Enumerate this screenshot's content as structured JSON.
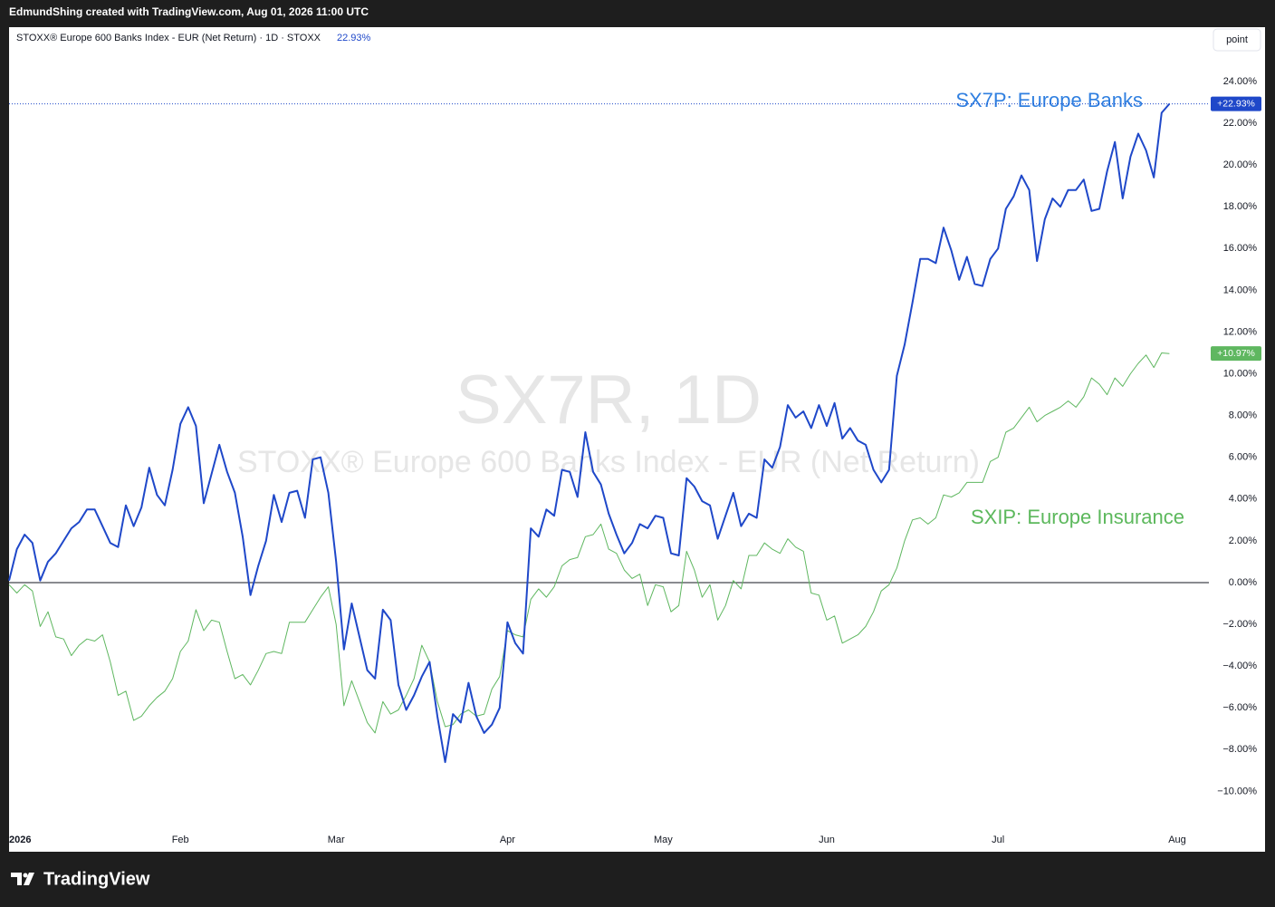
{
  "header": "EdmundShing created with TradingView.com, Aug 01, 2026 11:00 UTC",
  "brand": "TradingView",
  "button": "point",
  "chart_data": {
    "type": "line",
    "symbol_line": "STOXX® Europe 600 Banks Index - EUR (Net Return) · 1D · STOXX",
    "symbol_value": "22.93%",
    "watermark": "SX7R, 1D",
    "watermark_subtitle": "STOXX® Europe 600 Banks Index - EUR (Net Return)",
    "annotations": [
      "SX7P: Europe Banks",
      "SXIP: Europe Insurance"
    ],
    "categories": [
      "2026",
      null,
      null,
      null,
      null,
      null,
      null,
      null,
      null,
      null,
      null,
      null,
      null,
      null,
      null,
      null,
      null,
      null,
      null,
      null,
      null,
      null,
      "Feb",
      null,
      null,
      null,
      null,
      null,
      null,
      null,
      null,
      null,
      null,
      null,
      null,
      null,
      null,
      null,
      null,
      null,
      null,
      null,
      "Mar",
      null,
      null,
      null,
      null,
      null,
      null,
      null,
      null,
      null,
      null,
      null,
      null,
      null,
      null,
      null,
      null,
      null,
      null,
      null,
      null,
      null,
      "Apr",
      null,
      null,
      null,
      null,
      null,
      null,
      null,
      null,
      null,
      null,
      null,
      null,
      null,
      null,
      null,
      null,
      null,
      null,
      null,
      "May",
      null,
      null,
      null,
      null,
      null,
      null,
      null,
      null,
      null,
      null,
      null,
      null,
      null,
      null,
      null,
      null,
      null,
      null,
      null,
      null,
      "Jun",
      null,
      null,
      null,
      null,
      null,
      null,
      null,
      null,
      null,
      null,
      null,
      null,
      null,
      null,
      null,
      null,
      null,
      null,
      null,
      null,
      null,
      "Jul",
      null,
      null,
      null,
      null,
      null,
      null,
      null,
      null,
      null,
      null,
      null,
      null,
      null,
      null,
      null,
      null,
      null,
      null,
      null,
      null,
      null,
      null,
      "Aug"
    ],
    "series": [
      {
        "name": "SX7P",
        "color": "#1f48c9",
        "last_label": "+22.93%",
        "values": [
          0.1,
          1.6,
          2.3,
          1.9,
          0.1,
          1.0,
          1.4,
          2.0,
          2.6,
          2.9,
          3.5,
          3.5,
          2.7,
          1.9,
          1.7,
          3.7,
          2.7,
          3.6,
          5.5,
          4.2,
          3.7,
          5.4,
          7.6,
          8.4,
          7.5,
          3.8,
          5.2,
          6.6,
          5.3,
          4.3,
          2.2,
          -0.6,
          0.8,
          2.0,
          4.2,
          2.9,
          4.3,
          4.4,
          3.1,
          5.9,
          6.0,
          4.3,
          1.0,
          -3.2,
          -1.0,
          -2.6,
          -4.2,
          -4.6,
          -1.3,
          -1.8,
          -4.9,
          -6.1,
          -5.4,
          -4.5,
          -3.8,
          -6.4,
          -8.6,
          -6.3,
          -6.7,
          -4.8,
          -6.4,
          -7.2,
          -6.8,
          -6.0,
          -1.9,
          -2.9,
          -3.4,
          2.6,
          2.2,
          3.5,
          3.2,
          5.4,
          5.3,
          4.1,
          7.2,
          5.3,
          4.7,
          3.3,
          2.3,
          1.4,
          1.9,
          2.8,
          2.6,
          3.2,
          3.1,
          1.4,
          1.3,
          5.0,
          4.6,
          3.9,
          3.7,
          2.1,
          3.2,
          4.3,
          2.7,
          3.3,
          3.1,
          5.9,
          5.5,
          6.5,
          8.5,
          7.9,
          8.2,
          7.4,
          8.5,
          7.5,
          8.6,
          6.9,
          7.4,
          6.8,
          6.6,
          5.4,
          4.8,
          5.4,
          9.9,
          11.4,
          13.4,
          15.5,
          15.5,
          15.3,
          17.0,
          15.9,
          14.5,
          15.6,
          14.3,
          14.2,
          15.5,
          16.0,
          17.9,
          18.5,
          19.5,
          18.8,
          15.4,
          17.4,
          18.4,
          18.0,
          18.8,
          18.8,
          19.3,
          17.8,
          17.9,
          19.7,
          21.1,
          18.4,
          20.4,
          21.5,
          20.7,
          19.4,
          22.5,
          22.93,
          null
        ]
      },
      {
        "name": "SXIP",
        "color": "#5fb760",
        "last_label": "+10.97%",
        "values": [
          -0.1,
          -0.5,
          -0.1,
          -0.4,
          -2.1,
          -1.4,
          -2.6,
          -2.7,
          -3.5,
          -3.0,
          -2.7,
          -2.8,
          -2.5,
          -3.8,
          -5.4,
          -5.2,
          -6.6,
          -6.4,
          -5.9,
          -5.5,
          -5.2,
          -4.6,
          -3.3,
          -2.8,
          -1.3,
          -2.3,
          -1.8,
          -1.9,
          -3.3,
          -4.6,
          -4.4,
          -4.9,
          -4.2,
          -3.4,
          -3.3,
          -3.4,
          -1.9,
          -1.9,
          -1.9,
          -1.3,
          -0.7,
          -0.2,
          -2.0,
          -5.9,
          -4.7,
          -5.7,
          -6.7,
          -7.2,
          -5.7,
          -6.3,
          -6.1,
          -5.4,
          -4.6,
          -3.0,
          -3.8,
          -5.7,
          -6.9,
          -6.8,
          -6.3,
          -6.1,
          -6.4,
          -6.3,
          -5.1,
          -4.5,
          -2.3,
          -2.5,
          -2.6,
          -0.8,
          -0.3,
          -0.7,
          -0.2,
          0.8,
          1.1,
          1.2,
          2.2,
          2.3,
          2.8,
          1.6,
          1.4,
          0.6,
          0.2,
          0.4,
          -1.1,
          -0.1,
          -0.2,
          -1.4,
          -1.1,
          1.5,
          0.6,
          -0.7,
          -0.1,
          -1.8,
          -1.1,
          0.1,
          -0.3,
          1.3,
          1.3,
          1.9,
          1.6,
          1.4,
          2.1,
          1.7,
          1.5,
          -0.5,
          -0.6,
          -1.8,
          -1.6,
          -2.9,
          -2.7,
          -2.5,
          -2.1,
          -1.4,
          -0.4,
          -0.1,
          0.7,
          2.0,
          3.0,
          3.1,
          2.8,
          3.1,
          4.2,
          4.1,
          4.3,
          4.8,
          4.8,
          4.8,
          5.8,
          6.0,
          7.2,
          7.4,
          7.9,
          8.4,
          7.7,
          8.0,
          8.2,
          8.4,
          8.7,
          8.4,
          8.9,
          9.8,
          9.5,
          9.0,
          9.8,
          9.4,
          10.0,
          10.5,
          10.9,
          10.3,
          11.0,
          10.97,
          null
        ]
      }
    ],
    "ylim": [
      -12.89,
      26.6
    ],
    "yticks": [
      {
        "value": -10,
        "label": "−10.00%"
      },
      {
        "value": -8,
        "label": "−8.00%"
      },
      {
        "value": -6,
        "label": "−6.00%"
      },
      {
        "value": -4,
        "label": "−4.00%"
      },
      {
        "value": -2,
        "label": "−2.00%"
      },
      {
        "value": 0,
        "label": "0.00%"
      },
      {
        "value": 2,
        "label": "2.00%"
      },
      {
        "value": 4,
        "label": "4.00%"
      },
      {
        "value": 6,
        "label": "6.00%"
      },
      {
        "value": 8,
        "label": "8.00%"
      },
      {
        "value": 10,
        "label": "10.00%"
      },
      {
        "value": 12,
        "label": "12.00%"
      },
      {
        "value": 14,
        "label": "14.00%"
      },
      {
        "value": 16,
        "label": "16.00%"
      },
      {
        "value": 18,
        "label": "18.00%"
      },
      {
        "value": 20,
        "label": "20.00%"
      },
      {
        "value": 22,
        "label": "22.00%"
      },
      {
        "value": 24,
        "label": "24.00%"
      }
    ],
    "grid": false
  }
}
